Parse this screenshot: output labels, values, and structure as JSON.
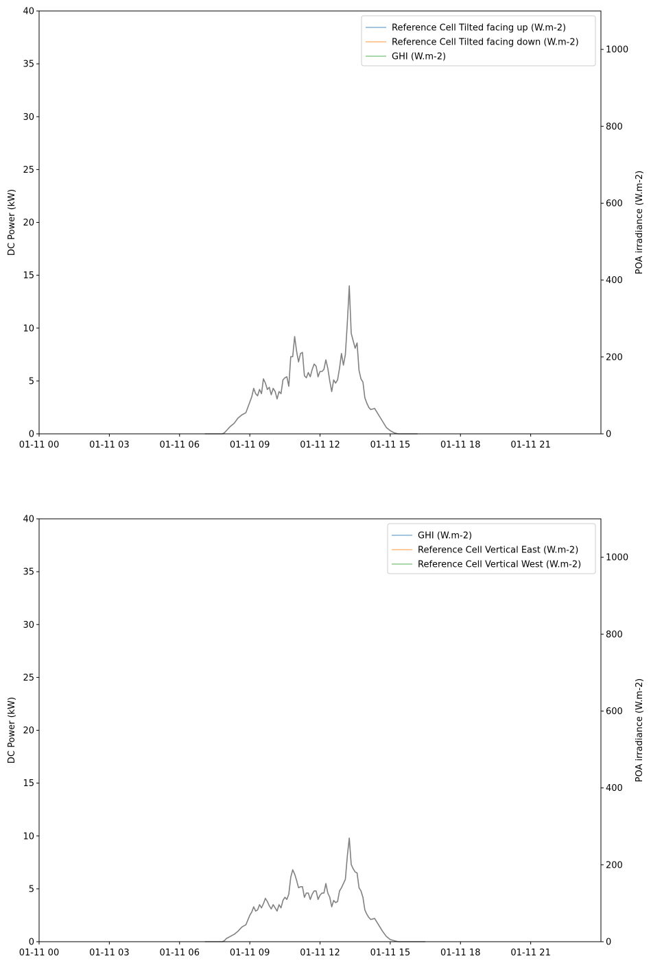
{
  "chart_data": [
    {
      "type": "line",
      "xlabel": "",
      "ylabel": "DC Power (kW)",
      "ylabel_right": "POA irradiance (W.m-2)",
      "ylim": [
        0,
        40
      ],
      "ylim_right": [
        0,
        1100
      ],
      "xlim_hours": [
        0,
        24
      ],
      "y_ticks": [
        "0",
        "5",
        "10",
        "15",
        "20",
        "25",
        "30",
        "35",
        "40"
      ],
      "y_ticks_right": [
        "0",
        "200",
        "400",
        "600",
        "800",
        "1000"
      ],
      "x_ticks": [
        "01-11 00",
        "01-11 03",
        "01-11 06",
        "01-11 09",
        "01-11 12",
        "01-11 15",
        "01-11 18",
        "01-11 21"
      ],
      "legend_placement": "top-right",
      "legend": [
        {
          "label": "Reference Cell Tilted facing up (W.m-2)",
          "color": "#1f77b4"
        },
        {
          "label": "Reference Cell Tilted facing down (W.m-2)",
          "color": "#ff7f0e"
        },
        {
          "label": "GHI (W.m-2)",
          "color": "#2ca02c"
        }
      ],
      "series": [
        {
          "color": "#808080",
          "axis": "left",
          "x": [
            "07:05",
            "07:50",
            "07:55",
            "08:00",
            "08:10",
            "08:20",
            "08:30",
            "08:40",
            "08:50",
            "09:00",
            "09:05",
            "09:10",
            "09:15",
            "09:20",
            "09:25",
            "09:30",
            "09:35",
            "09:40",
            "09:45",
            "09:50",
            "09:55",
            "10:00",
            "10:05",
            "10:10",
            "10:15",
            "10:20",
            "10:25",
            "10:30",
            "10:35",
            "10:40",
            "10:45",
            "10:50",
            "10:55",
            "11:00",
            "11:05",
            "11:10",
            "11:15",
            "11:20",
            "11:25",
            "11:30",
            "11:35",
            "11:40",
            "11:45",
            "11:50",
            "11:55",
            "12:00",
            "12:05",
            "12:10",
            "12:15",
            "12:20",
            "12:25",
            "12:30",
            "12:35",
            "12:40",
            "12:45",
            "12:50",
            "12:55",
            "13:00",
            "13:05",
            "13:10",
            "13:15",
            "13:20",
            "13:25",
            "13:30",
            "13:35",
            "13:40",
            "13:45",
            "13:50",
            "13:55",
            "14:00",
            "14:05",
            "14:10",
            "14:20",
            "14:30",
            "14:40",
            "14:50",
            "15:00",
            "15:10",
            "15:20",
            "16:10"
          ],
          "y": [
            0,
            0,
            0.1,
            0.3,
            0.7,
            1,
            1.5,
            1.8,
            2,
            3,
            3.5,
            4.3,
            3.8,
            3.6,
            4.2,
            3.8,
            5.2,
            4.8,
            4.2,
            4.4,
            3.7,
            4.3,
            4,
            3.3,
            4,
            3.8,
            5.1,
            5.3,
            5.4,
            4.5,
            7.3,
            7.3,
            9.2,
            7.8,
            6.8,
            7.6,
            7.7,
            5.5,
            5.3,
            5.8,
            5.4,
            6.1,
            6.6,
            6.4,
            5.4,
            5.9,
            5.9,
            6.1,
            7,
            6.2,
            5,
            4,
            5.1,
            4.8,
            5.1,
            6.2,
            7.6,
            6.5,
            7.5,
            10.5,
            14,
            9.5,
            8.8,
            8.1,
            8.6,
            6,
            5.2,
            4.9,
            3.4,
            2.9,
            2.5,
            2.3,
            2.4,
            1.8,
            1.2,
            0.6,
            0.3,
            0.1,
            0,
            0
          ]
        }
      ]
    },
    {
      "type": "line",
      "xlabel": "",
      "ylabel": "DC Power (kW)",
      "ylabel_right": "POA irradiance (W.m-2)",
      "ylim": [
        0,
        40
      ],
      "ylim_right": [
        0,
        1100
      ],
      "xlim_hours": [
        0,
        24
      ],
      "y_ticks": [
        "0",
        "5",
        "10",
        "15",
        "20",
        "25",
        "30",
        "35",
        "40"
      ],
      "y_ticks_right": [
        "0",
        "200",
        "400",
        "600",
        "800",
        "1000"
      ],
      "x_ticks": [
        "01-11 00",
        "01-11 03",
        "01-11 06",
        "01-11 09",
        "01-11 12",
        "01-11 15",
        "01-11 18",
        "01-11 21"
      ],
      "legend_placement": "top-right",
      "legend": [
        {
          "label": "GHI (W.m-2)",
          "color": "#1f77b4"
        },
        {
          "label": "Reference Cell Vertical East (W.m-2)",
          "color": "#ff7f0e"
        },
        {
          "label": "Reference Cell Vertical West (W.m-2)",
          "color": "#2ca02c"
        }
      ],
      "series": [
        {
          "color": "#808080",
          "axis": "left",
          "x": [
            "07:05",
            "07:50",
            "07:55",
            "08:00",
            "08:10",
            "08:20",
            "08:30",
            "08:40",
            "08:50",
            "09:00",
            "09:05",
            "09:10",
            "09:15",
            "09:20",
            "09:25",
            "09:30",
            "09:35",
            "09:40",
            "09:45",
            "09:50",
            "09:55",
            "10:00",
            "10:05",
            "10:10",
            "10:15",
            "10:20",
            "10:25",
            "10:30",
            "10:35",
            "10:40",
            "10:45",
            "10:50",
            "10:55",
            "11:00",
            "11:05",
            "11:10",
            "11:15",
            "11:20",
            "11:25",
            "11:30",
            "11:35",
            "11:40",
            "11:45",
            "11:50",
            "11:55",
            "12:00",
            "12:05",
            "12:10",
            "12:15",
            "12:20",
            "12:25",
            "12:30",
            "12:35",
            "12:40",
            "12:45",
            "12:50",
            "12:55",
            "13:00",
            "13:05",
            "13:10",
            "13:15",
            "13:20",
            "13:25",
            "13:30",
            "13:35",
            "13:40",
            "13:45",
            "13:50",
            "13:55",
            "14:00",
            "14:05",
            "14:10",
            "14:20",
            "14:30",
            "14:40",
            "14:50",
            "15:00",
            "15:10",
            "15:20",
            "16:30"
          ],
          "y": [
            0,
            0,
            0.1,
            0.3,
            0.5,
            0.7,
            1,
            1.4,
            1.6,
            2.5,
            2.8,
            3.3,
            2.9,
            3,
            3.5,
            3.2,
            3.6,
            4.1,
            3.8,
            3.4,
            3.1,
            3.5,
            3.2,
            2.9,
            3.5,
            3.2,
            3.9,
            4.2,
            4,
            4.5,
            6.1,
            6.8,
            6.4,
            5.8,
            5.1,
            5.2,
            5.2,
            4.2,
            4.6,
            4.6,
            4,
            4.5,
            4.8,
            4.8,
            4,
            4.4,
            4.6,
            4.6,
            5.5,
            4.6,
            4.2,
            3.3,
            3.9,
            3.7,
            3.8,
            4.8,
            5.1,
            5.5,
            5.9,
            8.1,
            9.8,
            7.3,
            6.9,
            6.6,
            6.5,
            5.1,
            4.8,
            4.2,
            3,
            2.6,
            2.3,
            2.1,
            2.2,
            1.6,
            1,
            0.5,
            0.2,
            0.1,
            0,
            0
          ]
        }
      ]
    }
  ]
}
